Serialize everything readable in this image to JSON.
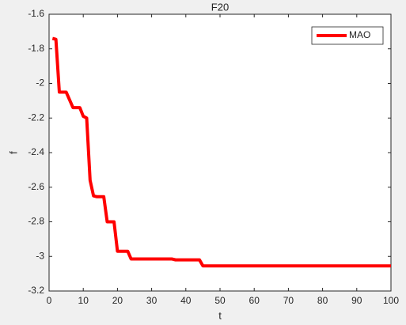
{
  "chart_data": {
    "type": "line",
    "title": "F20",
    "xlabel": "t",
    "ylabel": "f",
    "x": [
      1,
      2,
      3,
      5,
      7,
      9,
      10,
      11,
      12,
      13,
      14,
      16,
      17,
      19,
      20,
      23,
      24,
      36,
      37,
      44,
      45,
      100
    ],
    "series": [
      {
        "name": "MAO",
        "color": "#ff0000",
        "values": [
          -1.74,
          -1.745,
          -2.05,
          -2.05,
          -2.14,
          -2.14,
          -2.19,
          -2.2,
          -2.56,
          -2.65,
          -2.655,
          -2.655,
          -2.8,
          -2.8,
          -2.97,
          -2.97,
          -3.015,
          -3.015,
          -3.02,
          -3.02,
          -3.055,
          -3.055
        ]
      }
    ],
    "xlim": [
      0,
      100
    ],
    "xticks": [
      0,
      10,
      20,
      30,
      40,
      50,
      60,
      70,
      80,
      90,
      100
    ],
    "ylim": [
      -3.2,
      -1.6
    ],
    "yticks": [
      -3.2,
      -3,
      -2.8,
      -2.6,
      -2.4,
      -2.2,
      -2,
      -1.8,
      -1.6
    ],
    "grid": false,
    "legend": "northeast"
  }
}
